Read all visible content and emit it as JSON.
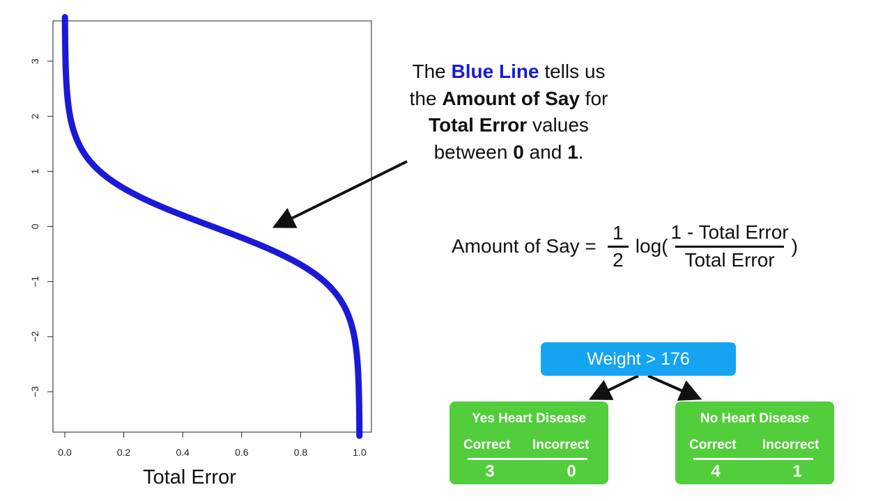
{
  "chart_data": {
    "type": "line",
    "xlabel": "Total Error",
    "ylabel": "",
    "xlim": [
      0,
      1
    ],
    "ylim": [
      -3.5,
      3.5
    ],
    "x_ticks": [
      "0.0",
      "0.2",
      "0.4",
      "0.6",
      "0.8",
      "1.0"
    ],
    "y_ticks": [
      "3",
      "2",
      "1",
      "0",
      "−1",
      "−2",
      "−3"
    ],
    "series": [
      {
        "function": "0.5*ln((1-x)/x)",
        "x_range": [
          0.0005,
          0.9995
        ],
        "color": "#1a1ad6"
      }
    ],
    "grid": false
  },
  "callout": {
    "l1_pre": "The ",
    "l1_blue": "Blue Line",
    "l1_post": " tells us",
    "l2_pre": "the ",
    "l2_bold": "Amount of Say",
    "l2_post": " for",
    "l3_bold": "Total Error",
    "l3_post": " values",
    "l4_pre": "between ",
    "l4_bold1": "0",
    "l4_mid": " and ",
    "l4_bold2": "1",
    "l4_post": "."
  },
  "formula": {
    "lhs": "Amount of Say =",
    "half_num": "1",
    "half_den": "2",
    "log": "log(",
    "frac_num": "1 - Total Error",
    "frac_den": "Total Error",
    "close": ")"
  },
  "tree": {
    "root": "Weight > 176",
    "leaves": [
      {
        "title": "Yes Heart Disease",
        "correct_label": "Correct",
        "incorrect_label": "Incorrect",
        "correct": "3",
        "incorrect": "0"
      },
      {
        "title": "No Heart Disease",
        "correct_label": "Correct",
        "incorrect_label": "Incorrect",
        "correct": "4",
        "incorrect": "1"
      }
    ]
  },
  "colors": {
    "curve": "#1a1ad6",
    "root_node": "#14a4f2",
    "leaf_node": "#52cd3c"
  }
}
